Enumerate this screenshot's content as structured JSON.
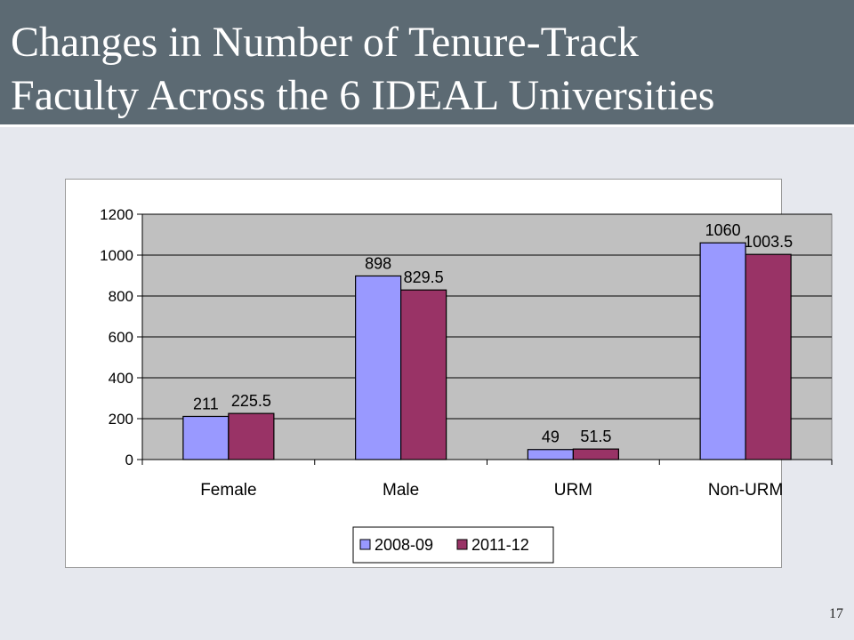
{
  "slide": {
    "title_line1": "Changes in Number of Tenure-Track",
    "title_line2": "Faculty Across the 6 IDEAL Universities",
    "page_number": "17"
  },
  "chart_data": {
    "type": "bar",
    "title": "",
    "xlabel": "",
    "ylabel": "",
    "categories": [
      "Female",
      "Male",
      "URM",
      "Non-URM"
    ],
    "series": [
      {
        "name": "2008-09",
        "values": [
          211,
          898,
          49,
          1060
        ],
        "color": "#9999ff"
      },
      {
        "name": "2011-12",
        "values": [
          225.5,
          829.5,
          51.5,
          1003.5
        ],
        "color": "#993366"
      }
    ],
    "data_labels": [
      [
        "211",
        "898",
        "49",
        "1060"
      ],
      [
        "225.5",
        "829.5",
        "51.5",
        "1003.5"
      ]
    ],
    "ylim": [
      0,
      1200
    ],
    "yticks": [
      0,
      200,
      400,
      600,
      800,
      1000,
      1200
    ],
    "ytick_labels": [
      "0",
      "200",
      "400",
      "600",
      "800",
      "1000",
      "1200"
    ],
    "grid": true,
    "plot_background": "#c0c0c0",
    "legend_position": "bottom-center"
  }
}
